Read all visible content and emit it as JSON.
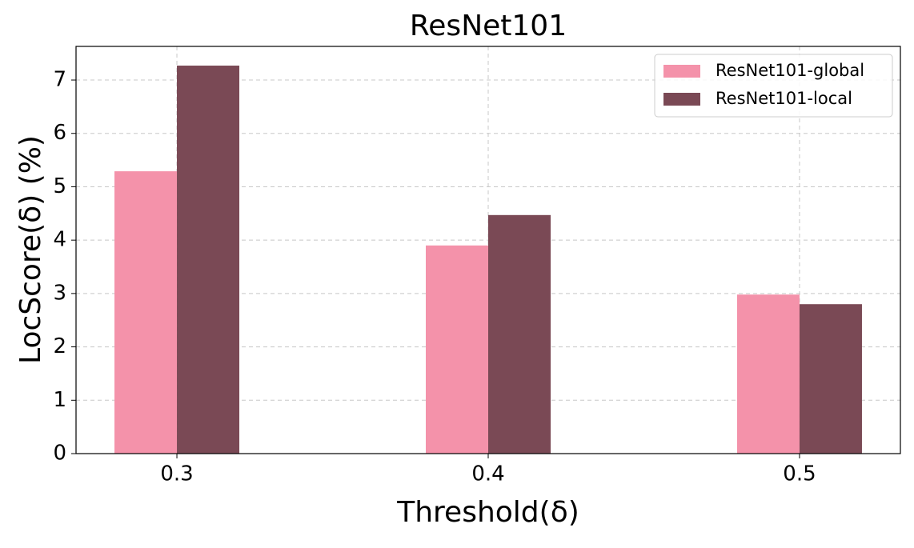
{
  "chart_data": {
    "type": "bar",
    "title": "ResNet101",
    "x_label": "Threshold(δ)",
    "y_label": "LocScore(δ) (%)",
    "categories": [
      "0.3",
      "0.4",
      "0.5"
    ],
    "series": [
      {
        "name": "ResNet101-global",
        "color": "#f492aa",
        "values": [
          5.29,
          3.9,
          2.98
        ]
      },
      {
        "name": "ResNet101-local",
        "color": "#7a4955",
        "values": [
          7.27,
          4.47,
          2.8
        ]
      }
    ],
    "ylim": [
      0,
      7.63
    ],
    "yticks": [
      0,
      1,
      2,
      3,
      4,
      5,
      6,
      7
    ],
    "grid": true,
    "legend": "upper right"
  }
}
